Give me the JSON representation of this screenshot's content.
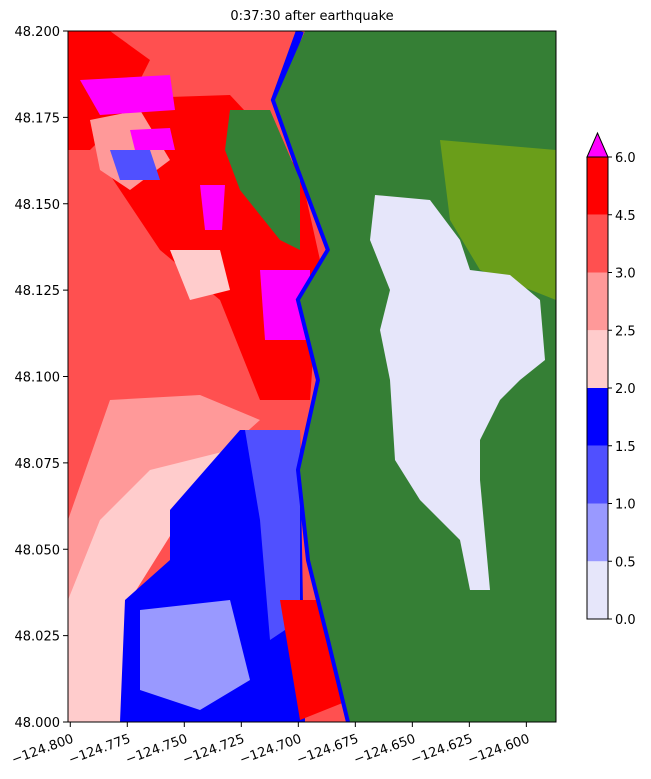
{
  "chart_data": {
    "type": "map",
    "title": "0:37:30 after earthquake",
    "xlim": [
      -124.801,
      -124.587
    ],
    "ylim": [
      48.0,
      48.2
    ],
    "xticks": [
      {
        "value": -124.8,
        "label": "−124.800"
      },
      {
        "value": -124.775,
        "label": "−124.775"
      },
      {
        "value": -124.75,
        "label": "−124.750"
      },
      {
        "value": -124.725,
        "label": "−124.725"
      },
      {
        "value": -124.7,
        "label": "−124.700"
      },
      {
        "value": -124.675,
        "label": "−124.675"
      },
      {
        "value": -124.65,
        "label": "−124.650"
      },
      {
        "value": -124.625,
        "label": "−124.625"
      },
      {
        "value": -124.6,
        "label": "−124.600"
      }
    ],
    "yticks": [
      {
        "value": 48.0,
        "label": "48.000"
      },
      {
        "value": 48.025,
        "label": "48.025"
      },
      {
        "value": 48.05,
        "label": "48.050"
      },
      {
        "value": 48.075,
        "label": "48.075"
      },
      {
        "value": 48.1,
        "label": "48.100"
      },
      {
        "value": 48.125,
        "label": "48.125"
      },
      {
        "value": 48.15,
        "label": "48.150"
      },
      {
        "value": 48.175,
        "label": "48.175"
      },
      {
        "value": 48.2,
        "label": "48.200"
      }
    ],
    "colorbar": {
      "levels": [
        {
          "value": 0,
          "label": "0.0"
        },
        {
          "value": 0.5,
          "label": "0.5"
        },
        {
          "value": 1,
          "label": "1.0"
        },
        {
          "value": 1.5,
          "label": "1.5"
        },
        {
          "value": 2,
          "label": "2.0"
        },
        {
          "value": 2.5,
          "label": "2.5"
        },
        {
          "value": 3,
          "label": "3.0"
        },
        {
          "value": 4.5,
          "label": "4.5"
        },
        {
          "value": 6,
          "label": "6.0"
        }
      ],
      "colors": [
        "#e6e6fa",
        "#9999ff",
        "#5050ff",
        "#0000ff",
        "#ffcccc",
        "#ff9999",
        "#ff5050",
        "#ff0000"
      ],
      "extend_color": "#ff00ff"
    }
  }
}
